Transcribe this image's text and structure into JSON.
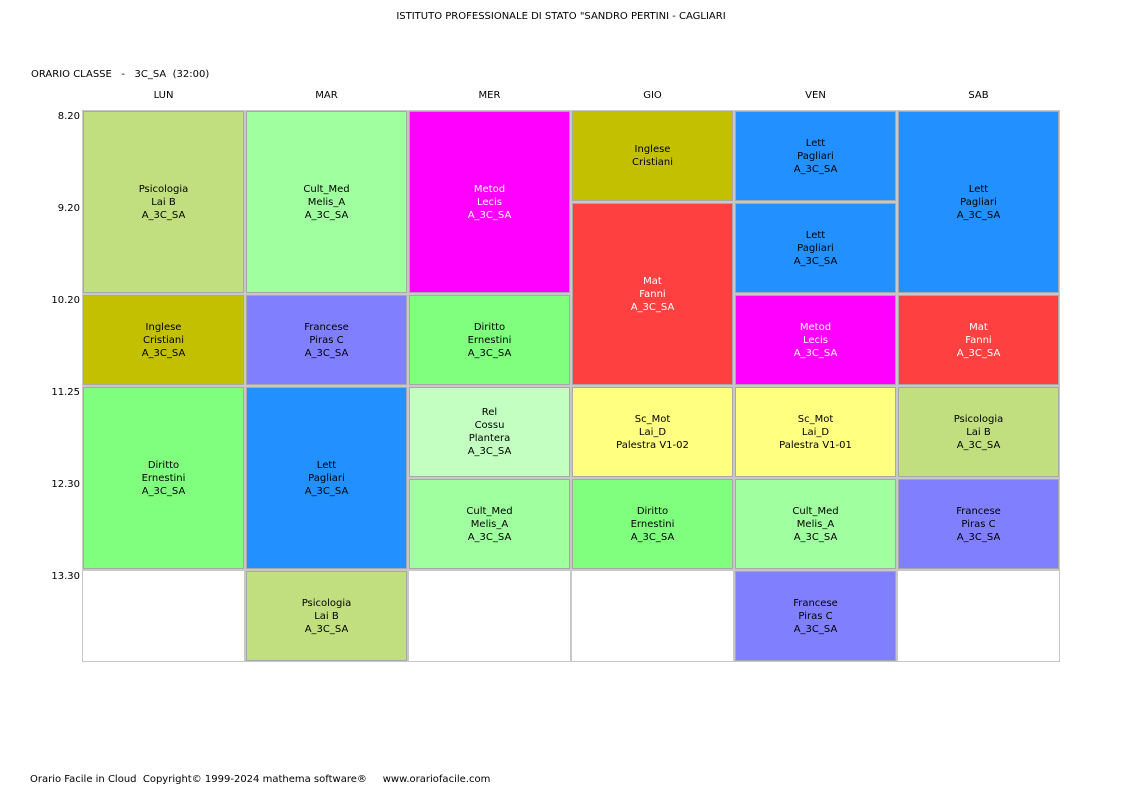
{
  "header": {
    "school": "ISTITUTO PROFESSIONALE DI STATO \"SANDRO PERTINI - CAGLIARI",
    "class_line": "ORARIO CLASSE   -   3C_SA  (32:00)"
  },
  "days": [
    "LUN",
    "MAR",
    "MER",
    "GIO",
    "VEN",
    "SAB"
  ],
  "times": [
    "8.20",
    "9.20",
    "10.20",
    "11.25",
    "12.30",
    "13.30"
  ],
  "colors": {
    "psicologia": "#c2df80",
    "cult_med": "#a0ff9f",
    "metod": "#ff00ff",
    "inglese": "#c2c000",
    "lett": "#2290ff",
    "mat": "#ff4040",
    "francese": "#8080ff",
    "diritto": "#80ff7f",
    "rel": "#c2ffc1",
    "sc_mot": "#ffff80"
  },
  "lessons": [
    {
      "day": 0,
      "start": 0,
      "span": 2,
      "color": "psicologia",
      "lines": [
        "Psicologia",
        "Lai B",
        "A_3C_SA"
      ]
    },
    {
      "day": 0,
      "start": 2,
      "span": 1,
      "color": "inglese",
      "lines": [
        "Inglese",
        "Cristiani",
        "A_3C_SA"
      ]
    },
    {
      "day": 0,
      "start": 3,
      "span": 2,
      "color": "diritto",
      "lines": [
        "Diritto",
        "Ernestini",
        "A_3C_SA"
      ]
    },
    {
      "day": 1,
      "start": 0,
      "span": 2,
      "color": "cult_med",
      "lines": [
        "Cult_Med",
        "Melis_A",
        "A_3C_SA"
      ]
    },
    {
      "day": 1,
      "start": 2,
      "span": 1,
      "color": "francese",
      "lines": [
        "Francese",
        "Piras C",
        "A_3C_SA"
      ]
    },
    {
      "day": 1,
      "start": 3,
      "span": 2,
      "color": "lett",
      "lines": [
        "Lett",
        "Pagliari",
        "A_3C_SA"
      ]
    },
    {
      "day": 1,
      "start": 5,
      "span": 1,
      "color": "psicologia",
      "lines": [
        "Psicologia",
        "Lai B",
        "A_3C_SA"
      ]
    },
    {
      "day": 2,
      "start": 0,
      "span": 2,
      "color": "metod",
      "light": true,
      "lines": [
        "Metod",
        "Lecis",
        "A_3C_SA"
      ]
    },
    {
      "day": 2,
      "start": 2,
      "span": 1,
      "color": "diritto",
      "lines": [
        "Diritto",
        "Ernestini",
        "A_3C_SA"
      ]
    },
    {
      "day": 2,
      "start": 3,
      "span": 1,
      "color": "rel",
      "lines": [
        "Rel",
        "Cossu",
        "Plantera",
        "A_3C_SA"
      ]
    },
    {
      "day": 2,
      "start": 4,
      "span": 1,
      "color": "cult_med",
      "lines": [
        "Cult_Med",
        "Melis_A",
        "A_3C_SA"
      ]
    },
    {
      "day": 3,
      "start": 0,
      "span": 1,
      "color": "inglese",
      "lines": [
        "Inglese",
        "Cristiani"
      ]
    },
    {
      "day": 3,
      "start": 1,
      "span": 2,
      "color": "mat",
      "light": true,
      "lines": [
        "Mat",
        "Fanni",
        "A_3C_SA"
      ]
    },
    {
      "day": 3,
      "start": 3,
      "span": 1,
      "color": "sc_mot",
      "lines": [
        "Sc_Mot",
        "Lai_D",
        "Palestra V1-02"
      ]
    },
    {
      "day": 3,
      "start": 4,
      "span": 1,
      "color": "diritto",
      "lines": [
        "Diritto",
        "Ernestini",
        "A_3C_SA"
      ]
    },
    {
      "day": 4,
      "start": 0,
      "span": 1,
      "color": "lett",
      "lines": [
        "Lett",
        "Pagliari",
        "A_3C_SA"
      ]
    },
    {
      "day": 4,
      "start": 1,
      "span": 1,
      "color": "lett",
      "lines": [
        "Lett",
        "Pagliari",
        "A_3C_SA"
      ]
    },
    {
      "day": 4,
      "start": 2,
      "span": 1,
      "color": "metod",
      "light": true,
      "lines": [
        "Metod",
        "Lecis",
        "A_3C_SA"
      ]
    },
    {
      "day": 4,
      "start": 3,
      "span": 1,
      "color": "sc_mot",
      "lines": [
        "Sc_Mot",
        "Lai_D",
        "Palestra V1-01"
      ]
    },
    {
      "day": 4,
      "start": 4,
      "span": 1,
      "color": "cult_med",
      "lines": [
        "Cult_Med",
        "Melis_A",
        "A_3C_SA"
      ]
    },
    {
      "day": 4,
      "start": 5,
      "span": 1,
      "color": "francese",
      "lines": [
        "Francese",
        "Piras C",
        "A_3C_SA"
      ]
    },
    {
      "day": 5,
      "start": 0,
      "span": 2,
      "color": "lett",
      "lines": [
        "Lett",
        "Pagliari",
        "A_3C_SA"
      ]
    },
    {
      "day": 5,
      "start": 2,
      "span": 1,
      "color": "mat",
      "light": true,
      "lines": [
        "Mat",
        "Fanni",
        "A_3C_SA"
      ]
    },
    {
      "day": 5,
      "start": 3,
      "span": 1,
      "color": "psicologia",
      "lines": [
        "Psicologia",
        "Lai B",
        "A_3C_SA"
      ]
    },
    {
      "day": 5,
      "start": 4,
      "span": 1,
      "color": "francese",
      "lines": [
        "Francese",
        "Piras C",
        "A_3C_SA"
      ]
    }
  ],
  "footer": "Orario Facile in Cloud  Copyright© 1999-2024 mathema software®     www.orariofacile.com"
}
